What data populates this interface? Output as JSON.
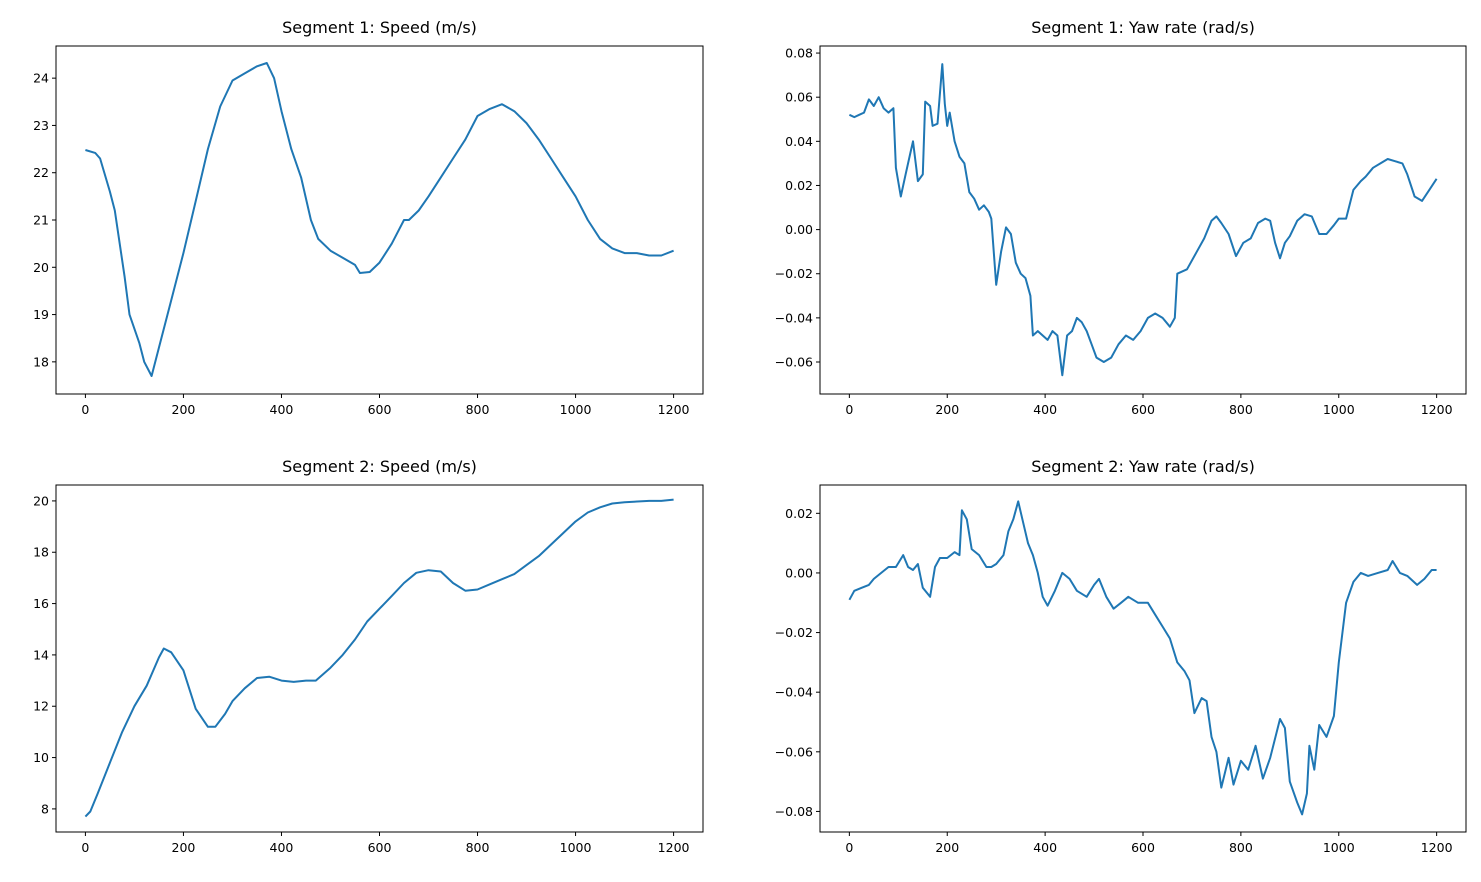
{
  "line_color": "#1f77b4",
  "chart_data": [
    {
      "type": "line",
      "title": "Segment 1: Speed (m/s)",
      "xlim": [
        -60,
        1260
      ],
      "ylim": [
        17.32,
        24.68
      ],
      "xticks": [
        0,
        200,
        400,
        600,
        800,
        1000,
        1200
      ],
      "yticks": [
        18,
        19,
        20,
        21,
        22,
        23,
        24
      ],
      "ytick_labels": [
        "18",
        "19",
        "20",
        "21",
        "22",
        "23",
        "24"
      ],
      "grid": false,
      "x": [
        0,
        20,
        30,
        50,
        60,
        80,
        90,
        110,
        120,
        135,
        150,
        175,
        200,
        225,
        250,
        275,
        300,
        325,
        350,
        370,
        385,
        400,
        420,
        440,
        460,
        475,
        500,
        525,
        550,
        560,
        580,
        600,
        625,
        650,
        660,
        680,
        700,
        725,
        750,
        775,
        800,
        825,
        850,
        875,
        900,
        925,
        950,
        975,
        1000,
        1025,
        1050,
        1075,
        1100,
        1125,
        1150,
        1175,
        1200
      ],
      "y": [
        22.48,
        22.42,
        22.3,
        21.6,
        21.2,
        19.8,
        19.0,
        18.4,
        18.0,
        17.7,
        18.3,
        19.3,
        20.3,
        21.4,
        22.5,
        23.4,
        23.95,
        24.1,
        24.25,
        24.32,
        24.0,
        23.3,
        22.5,
        21.9,
        21.0,
        20.6,
        20.35,
        20.2,
        20.05,
        19.88,
        19.9,
        20.1,
        20.5,
        21.0,
        21.0,
        21.2,
        21.5,
        21.9,
        22.3,
        22.7,
        23.2,
        23.35,
        23.45,
        23.3,
        23.05,
        22.7,
        22.3,
        21.9,
        21.5,
        21.0,
        20.6,
        20.4,
        20.3,
        20.3,
        20.25,
        20.25,
        20.35
      ]
    },
    {
      "type": "line",
      "title": "Segment 1: Yaw rate (rad/s)",
      "xlim": [
        -60,
        1260
      ],
      "ylim": [
        -0.0745,
        0.0832
      ],
      "xticks": [
        0,
        200,
        400,
        600,
        800,
        1000,
        1200
      ],
      "yticks": [
        -0.06,
        -0.04,
        -0.02,
        0,
        0.02,
        0.04,
        0.06,
        0.08
      ],
      "ytick_labels": [
        "−0.06",
        "−0.04",
        "−0.02",
        "0.00",
        "0.02",
        "0.04",
        "0.06",
        "0.08"
      ],
      "grid": false,
      "x": [
        0,
        10,
        20,
        30,
        40,
        50,
        60,
        70,
        80,
        90,
        95,
        105,
        115,
        125,
        130,
        140,
        150,
        155,
        165,
        170,
        180,
        190,
        195,
        200,
        205,
        215,
        225,
        235,
        245,
        255,
        265,
        275,
        285,
        290,
        300,
        310,
        320,
        330,
        340,
        350,
        360,
        370,
        375,
        385,
        395,
        405,
        415,
        425,
        435,
        445,
        455,
        465,
        475,
        485,
        495,
        505,
        520,
        535,
        550,
        565,
        580,
        595,
        610,
        625,
        640,
        655,
        665,
        670,
        690,
        710,
        725,
        740,
        750,
        760,
        775,
        790,
        805,
        820,
        835,
        850,
        860,
        870,
        880,
        890,
        900,
        915,
        930,
        945,
        960,
        975,
        990,
        1000,
        1015,
        1030,
        1045,
        1055,
        1070,
        1085,
        1100,
        1115,
        1130,
        1140,
        1155,
        1170,
        1185,
        1200
      ],
      "y": [
        0.052,
        0.051,
        0.052,
        0.053,
        0.059,
        0.056,
        0.06,
        0.055,
        0.053,
        0.055,
        0.028,
        0.015,
        0.025,
        0.035,
        0.04,
        0.022,
        0.025,
        0.058,
        0.056,
        0.047,
        0.048,
        0.075,
        0.057,
        0.047,
        0.053,
        0.04,
        0.033,
        0.03,
        0.017,
        0.014,
        0.009,
        0.011,
        0.008,
        0.005,
        -0.025,
        -0.01,
        0.001,
        -0.002,
        -0.015,
        -0.02,
        -0.022,
        -0.03,
        -0.048,
        -0.046,
        -0.048,
        -0.05,
        -0.046,
        -0.048,
        -0.066,
        -0.048,
        -0.046,
        -0.04,
        -0.042,
        -0.046,
        -0.052,
        -0.058,
        -0.06,
        -0.058,
        -0.052,
        -0.048,
        -0.05,
        -0.046,
        -0.04,
        -0.038,
        -0.04,
        -0.044,
        -0.04,
        -0.02,
        -0.018,
        -0.01,
        -0.004,
        0.004,
        0.006,
        0.003,
        -0.002,
        -0.012,
        -0.006,
        -0.004,
        0.003,
        0.005,
        0.004,
        -0.006,
        -0.013,
        -0.006,
        -0.003,
        0.004,
        0.007,
        0.006,
        -0.002,
        -0.002,
        0.002,
        0.005,
        0.005,
        0.018,
        0.022,
        0.024,
        0.028,
        0.03,
        0.032,
        0.031,
        0.03,
        0.025,
        0.015,
        0.013,
        0.018,
        0.023
      ]
    },
    {
      "type": "line",
      "title": "Segment 2: Speed (m/s)",
      "xlim": [
        -60,
        1260
      ],
      "ylim": [
        7.1,
        20.62
      ],
      "xticks": [
        0,
        200,
        400,
        600,
        800,
        1000,
        1200
      ],
      "yticks": [
        8,
        10,
        12,
        14,
        16,
        18,
        20
      ],
      "ytick_labels": [
        "8",
        "10",
        "12",
        "14",
        "16",
        "18",
        "20"
      ],
      "grid": false,
      "x": [
        0,
        10,
        25,
        50,
        75,
        100,
        125,
        150,
        160,
        175,
        200,
        225,
        250,
        265,
        285,
        300,
        325,
        350,
        375,
        400,
        425,
        450,
        470,
        500,
        525,
        550,
        575,
        600,
        625,
        650,
        675,
        700,
        725,
        750,
        775,
        800,
        825,
        850,
        875,
        900,
        925,
        950,
        975,
        1000,
        1025,
        1050,
        1075,
        1100,
        1150,
        1175,
        1200
      ],
      "y": [
        7.7,
        7.9,
        8.6,
        9.8,
        11.0,
        12.0,
        12.8,
        13.9,
        14.25,
        14.1,
        13.4,
        11.9,
        11.2,
        11.2,
        11.7,
        12.2,
        12.7,
        13.1,
        13.15,
        13.0,
        12.95,
        13.0,
        13.0,
        13.5,
        14.0,
        14.6,
        15.3,
        15.8,
        16.3,
        16.8,
        17.2,
        17.3,
        17.25,
        16.8,
        16.5,
        16.55,
        16.75,
        16.95,
        17.15,
        17.5,
        17.85,
        18.3,
        18.75,
        19.2,
        19.55,
        19.75,
        19.9,
        19.95,
        20.0,
        20.0,
        20.05
      ]
    },
    {
      "type": "line",
      "title": "Segment 2: Yaw rate (rad/s)",
      "xlim": [
        -60,
        1260
      ],
      "ylim": [
        -0.0869,
        0.0295
      ],
      "xticks": [
        0,
        200,
        400,
        600,
        800,
        1000,
        1200
      ],
      "yticks": [
        -0.08,
        -0.06,
        -0.04,
        -0.02,
        0,
        0.02
      ],
      "ytick_labels": [
        "−0.08",
        "−0.06",
        "−0.04",
        "−0.02",
        "0.00",
        "0.02"
      ],
      "grid": false,
      "x": [
        0,
        10,
        25,
        40,
        50,
        65,
        80,
        95,
        110,
        120,
        130,
        140,
        150,
        165,
        175,
        185,
        200,
        215,
        225,
        230,
        240,
        250,
        265,
        280,
        290,
        300,
        315,
        325,
        335,
        345,
        355,
        365,
        375,
        385,
        395,
        405,
        420,
        435,
        450,
        465,
        485,
        500,
        510,
        525,
        540,
        555,
        570,
        590,
        610,
        625,
        640,
        655,
        670,
        685,
        695,
        705,
        720,
        730,
        740,
        750,
        760,
        775,
        785,
        800,
        815,
        830,
        845,
        860,
        880,
        890,
        900,
        915,
        925,
        935,
        940,
        950,
        960,
        975,
        990,
        1000,
        1015,
        1030,
        1045,
        1060,
        1080,
        1100,
        1110,
        1125,
        1140,
        1160,
        1175,
        1190,
        1200
      ],
      "y": [
        -0.009,
        -0.006,
        -0.005,
        -0.004,
        -0.002,
        0.0,
        0.002,
        0.002,
        0.006,
        0.002,
        0.001,
        0.003,
        -0.005,
        -0.008,
        0.002,
        0.005,
        0.005,
        0.007,
        0.006,
        0.021,
        0.018,
        0.008,
        0.006,
        0.002,
        0.002,
        0.003,
        0.006,
        0.014,
        0.018,
        0.024,
        0.017,
        0.01,
        0.006,
        0.0,
        -0.008,
        -0.011,
        -0.006,
        0.0,
        -0.002,
        -0.006,
        -0.008,
        -0.004,
        -0.002,
        -0.008,
        -0.012,
        -0.01,
        -0.008,
        -0.01,
        -0.01,
        -0.014,
        -0.018,
        -0.022,
        -0.03,
        -0.033,
        -0.036,
        -0.047,
        -0.042,
        -0.043,
        -0.055,
        -0.06,
        -0.072,
        -0.062,
        -0.071,
        -0.063,
        -0.066,
        -0.058,
        -0.069,
        -0.062,
        -0.049,
        -0.052,
        -0.07,
        -0.077,
        -0.081,
        -0.074,
        -0.058,
        -0.066,
        -0.051,
        -0.055,
        -0.048,
        -0.03,
        -0.01,
        -0.003,
        0.0,
        -0.001,
        0.0,
        0.001,
        0.004,
        0.0,
        -0.001,
        -0.004,
        -0.002,
        0.001,
        0.001
      ]
    }
  ]
}
